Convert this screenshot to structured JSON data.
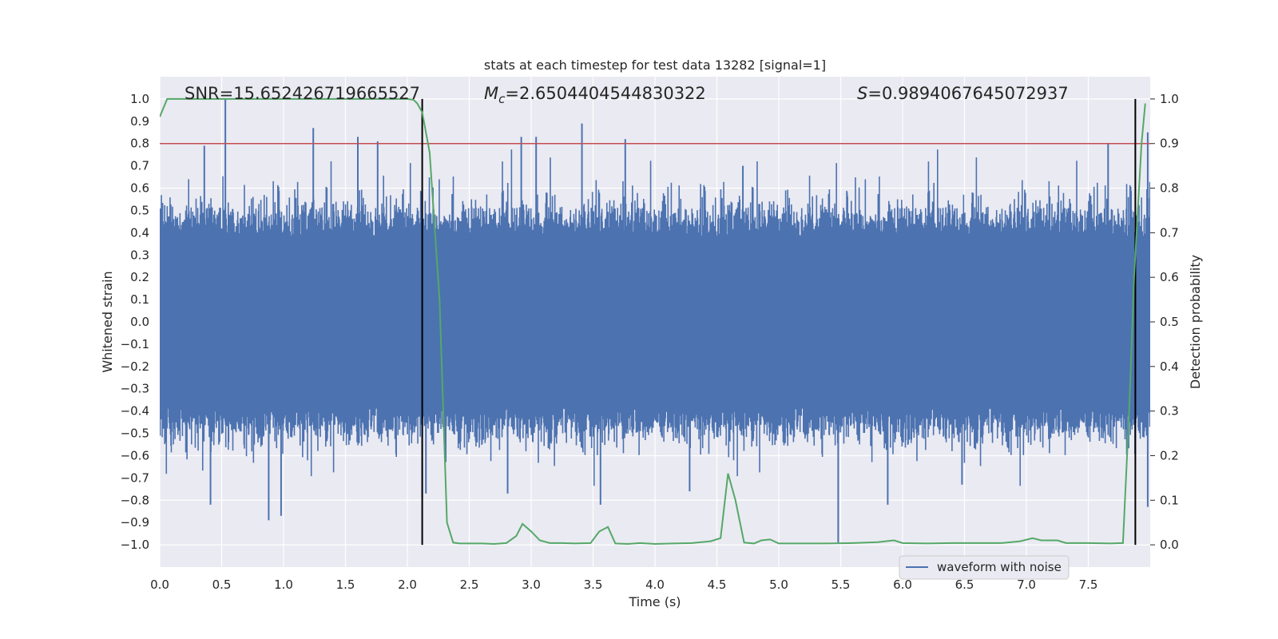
{
  "chart_data": {
    "type": "line",
    "title": "stats at each timestep for test data 13282 [signal=1]",
    "xlabel": "Time (s)",
    "ylabel": "Whitened strain",
    "y2label": "Detection probability",
    "xlim": [
      0.0,
      8.0
    ],
    "ylim": [
      -1.1,
      1.1
    ],
    "y2lim": [
      -0.05,
      1.05
    ],
    "xticks": [
      "0.0",
      "0.5",
      "1.0",
      "1.5",
      "2.0",
      "2.5",
      "3.0",
      "3.5",
      "4.0",
      "4.5",
      "5.0",
      "5.5",
      "6.0",
      "6.5",
      "7.0",
      "7.5"
    ],
    "yticks": [
      "−1.0",
      "−0.9",
      "−0.8",
      "−0.7",
      "−0.6",
      "−0.5",
      "−0.4",
      "−0.3",
      "−0.2",
      "−0.1",
      "0.0",
      "0.1",
      "0.2",
      "0.3",
      "0.4",
      "0.5",
      "0.6",
      "0.7",
      "0.8",
      "0.9",
      "1.0"
    ],
    "y2ticks": [
      "0.0",
      "0.1",
      "0.2",
      "0.3",
      "0.4",
      "0.5",
      "0.6",
      "0.7",
      "0.8",
      "0.9",
      "1.0"
    ],
    "grid": true,
    "legend_position": "lower-right",
    "annotations": {
      "snr": "SNR=15.652426719665527",
      "mc_symbol": "M",
      "mc_sub": "c",
      "mc_value": "=2.6504404544830322",
      "s_symbol": "S",
      "s_value": "=0.9894067645072937"
    },
    "series": [
      {
        "name": "waveform with noise",
        "color": "#4c72b0",
        "axis": "left",
        "description_amplitude": "dense noise oscillating roughly between -0.6 and 0.6 with spikes to ±1.0",
        "spikes": [
          {
            "x": 0.36,
            "y": 0.79
          },
          {
            "x": 0.41,
            "y": -0.82
          },
          {
            "x": 0.53,
            "y": 1.0
          },
          {
            "x": 0.88,
            "y": -0.89
          },
          {
            "x": 0.98,
            "y": -0.87
          },
          {
            "x": 1.24,
            "y": 0.87
          },
          {
            "x": 1.6,
            "y": 0.83
          },
          {
            "x": 1.76,
            "y": 0.81
          },
          {
            "x": 2.12,
            "y": -0.79
          },
          {
            "x": 2.15,
            "y": -0.77
          },
          {
            "x": 2.81,
            "y": -0.77
          },
          {
            "x": 2.92,
            "y": 0.83
          },
          {
            "x": 3.04,
            "y": 0.83
          },
          {
            "x": 3.41,
            "y": 0.89
          },
          {
            "x": 3.56,
            "y": -0.82
          },
          {
            "x": 3.76,
            "y": 0.82
          },
          {
            "x": 4.28,
            "y": -0.76
          },
          {
            "x": 4.71,
            "y": 0.7
          },
          {
            "x": 5.48,
            "y": -0.99
          },
          {
            "x": 5.88,
            "y": -0.82
          },
          {
            "x": 6.48,
            "y": -0.73
          },
          {
            "x": 7.66,
            "y": 0.8
          },
          {
            "x": 7.98,
            "y": 0.85
          },
          {
            "x": 7.98,
            "y": -0.83
          }
        ]
      },
      {
        "name": "",
        "color": "#55a868",
        "axis": "right",
        "x": [
          0.0,
          0.06,
          0.5,
          1.0,
          1.5,
          2.0,
          2.05,
          2.08,
          2.12,
          2.18,
          2.26,
          2.32,
          2.37,
          2.42,
          2.5,
          2.6,
          2.7,
          2.8,
          2.88,
          2.93,
          3.0,
          3.07,
          3.15,
          3.25,
          3.35,
          3.48,
          3.55,
          3.62,
          3.68,
          3.78,
          3.88,
          4.0,
          4.15,
          4.3,
          4.45,
          4.53,
          4.59,
          4.65,
          4.72,
          4.8,
          4.86,
          4.93,
          5.0,
          5.2,
          5.4,
          5.6,
          5.8,
          5.93,
          6.0,
          6.2,
          6.4,
          6.6,
          6.8,
          6.95,
          7.05,
          7.12,
          7.25,
          7.32,
          7.5,
          7.68,
          7.78,
          7.83,
          7.87,
          7.93,
          7.96
        ],
        "y": [
          0.96,
          1.0,
          1.0,
          1.0,
          1.0,
          1.0,
          0.998,
          0.99,
          0.97,
          0.88,
          0.55,
          0.05,
          0.005,
          0.003,
          0.003,
          0.003,
          0.002,
          0.004,
          0.02,
          0.047,
          0.03,
          0.01,
          0.004,
          0.004,
          0.003,
          0.004,
          0.03,
          0.04,
          0.003,
          0.002,
          0.004,
          0.002,
          0.003,
          0.004,
          0.008,
          0.015,
          0.16,
          0.1,
          0.005,
          0.003,
          0.01,
          0.012,
          0.003,
          0.003,
          0.003,
          0.004,
          0.006,
          0.01,
          0.004,
          0.003,
          0.004,
          0.004,
          0.004,
          0.008,
          0.015,
          0.01,
          0.01,
          0.004,
          0.004,
          0.003,
          0.004,
          0.3,
          0.6,
          0.9,
          0.99
        ]
      },
      {
        "name": "",
        "color": "#c44e52",
        "axis": "right",
        "type": "hline",
        "y": 0.9
      }
    ],
    "vlines": [
      2.12,
      7.88
    ]
  }
}
